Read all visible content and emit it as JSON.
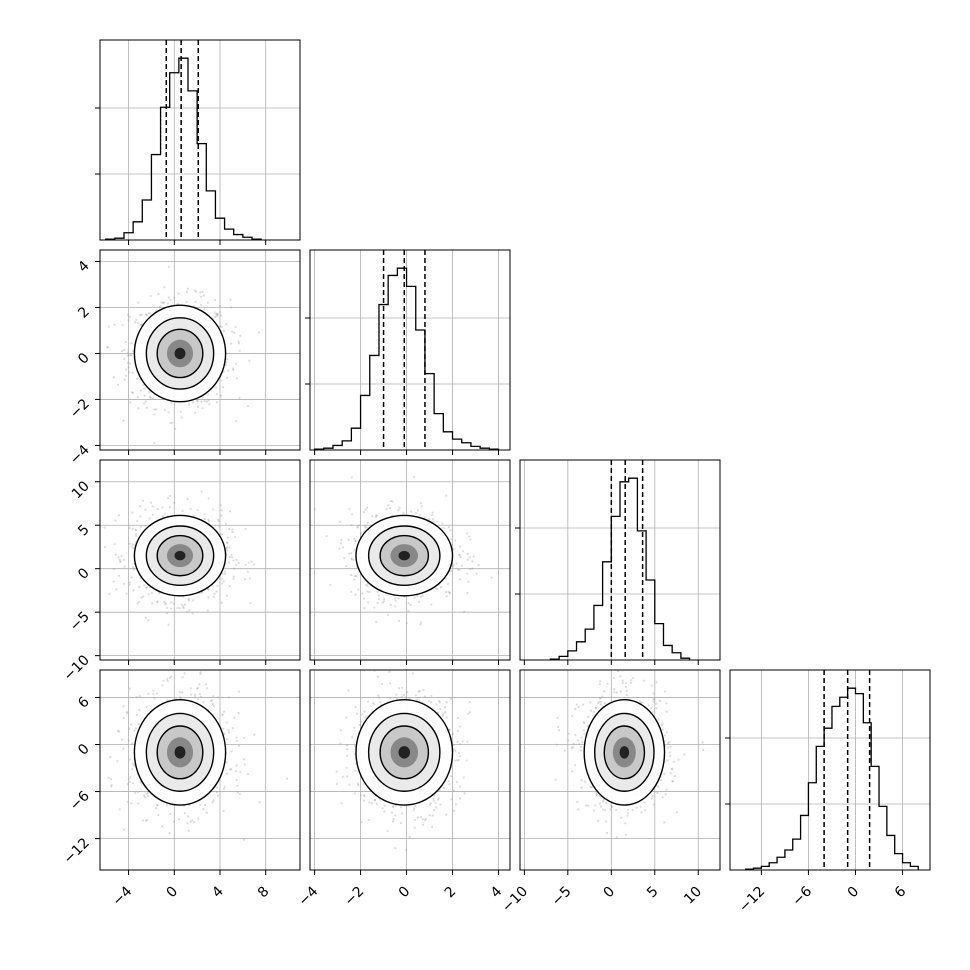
{
  "chart_data": {
    "type": "corner",
    "title": "",
    "grid": true,
    "colors": {
      "ink": "#000000",
      "grid": "#b0b0b0",
      "scatter": "#9a9a9a"
    },
    "params": [
      {
        "range": [
          -6.5,
          11.0
        ],
        "ticks": [
          -4,
          0,
          4,
          8
        ],
        "tick_labels": [
          "−4",
          "0",
          "4",
          "8"
        ],
        "quantiles": [
          -0.7,
          0.6,
          2.1
        ],
        "hist": {
          "edges": [
            -6.0,
            -5.2,
            -4.4,
            -3.6,
            -2.8,
            -2.0,
            -1.2,
            -0.4,
            0.4,
            1.2,
            2.0,
            2.8,
            3.6,
            4.4,
            5.2,
            6.0,
            6.8,
            7.6
          ],
          "counts": [
            0.005,
            0.01,
            0.04,
            0.1,
            0.22,
            0.47,
            0.73,
            0.92,
            1.0,
            0.82,
            0.53,
            0.27,
            0.12,
            0.06,
            0.03,
            0.015,
            0.005
          ]
        }
      },
      {
        "range": [
          -4.2,
          4.5
        ],
        "ticks": [
          -4,
          -2,
          0,
          2,
          4
        ],
        "tick_labels": [
          "−4",
          "−2",
          "0",
          "2",
          "4"
        ],
        "quantiles": [
          -1.0,
          -0.1,
          0.8
        ],
        "hist": {
          "edges": [
            -4.0,
            -3.6,
            -3.2,
            -2.8,
            -2.4,
            -2.0,
            -1.6,
            -1.2,
            -0.8,
            -0.4,
            0.0,
            0.4,
            0.8,
            1.2,
            1.6,
            2.0,
            2.4,
            2.8,
            3.2,
            3.6,
            4.0
          ],
          "counts": [
            0.005,
            0.01,
            0.025,
            0.05,
            0.12,
            0.3,
            0.52,
            0.8,
            0.96,
            1.0,
            0.9,
            0.66,
            0.42,
            0.2,
            0.1,
            0.06,
            0.04,
            0.02,
            0.01,
            0.005
          ]
        }
      },
      {
        "range": [
          -10.5,
          12.5
        ],
        "ticks": [
          -10,
          -5,
          0,
          5,
          10
        ],
        "tick_labels": [
          "−10",
          "−5",
          "0",
          "5",
          "10"
        ],
        "quantiles": [
          0.0,
          1.6,
          3.6
        ],
        "hist": {
          "edges": [
            -7.0,
            -6.0,
            -5.0,
            -4.0,
            -3.0,
            -2.0,
            -1.0,
            0.0,
            1.0,
            2.0,
            3.0,
            4.0,
            5.0,
            6.0,
            7.0,
            8.0,
            9.0
          ],
          "counts": [
            0.005,
            0.02,
            0.05,
            0.1,
            0.17,
            0.3,
            0.54,
            0.79,
            0.98,
            1.0,
            0.71,
            0.44,
            0.2,
            0.08,
            0.04,
            0.01
          ]
        }
      },
      {
        "range": [
          -16.0,
          9.5
        ],
        "ticks": [
          -12,
          -6,
          0,
          6
        ],
        "tick_labels": [
          "−12",
          "−6",
          "0",
          "6"
        ],
        "quantiles": [
          -4.0,
          -1.0,
          1.8
        ],
        "hist": {
          "edges": [
            -14.0,
            -13.0,
            -12.0,
            -11.0,
            -10.0,
            -9.0,
            -8.0,
            -7.0,
            -6.0,
            -5.0,
            -4.0,
            -3.0,
            -2.0,
            -1.0,
            0.0,
            1.0,
            2.0,
            3.0,
            4.0,
            5.0,
            6.0,
            7.0,
            8.0
          ],
          "counts": [
            0.005,
            0.01,
            0.02,
            0.04,
            0.07,
            0.11,
            0.17,
            0.3,
            0.48,
            0.68,
            0.78,
            0.9,
            0.95,
            1.0,
            0.97,
            0.81,
            0.57,
            0.35,
            0.19,
            0.09,
            0.04,
            0.02
          ]
        }
      }
    ],
    "pairs": [
      {
        "x": 0,
        "y": 1,
        "center": [
          0.5,
          0.0
        ],
        "spread": [
          1.9,
          1.0
        ]
      },
      {
        "x": 0,
        "y": 2,
        "center": [
          0.5,
          1.5
        ],
        "spread": [
          1.9,
          2.2
        ]
      },
      {
        "x": 1,
        "y": 2,
        "center": [
          -0.1,
          1.5
        ],
        "spread": [
          1.0,
          2.2
        ]
      },
      {
        "x": 0,
        "y": 3,
        "center": [
          0.5,
          -1.0
        ],
        "spread": [
          1.9,
          3.2
        ]
      },
      {
        "x": 1,
        "y": 3,
        "center": [
          -0.1,
          -1.0
        ],
        "spread": [
          1.0,
          3.2
        ]
      },
      {
        "x": 2,
        "y": 3,
        "center": [
          1.5,
          -1.0
        ],
        "spread": [
          2.2,
          3.2
        ]
      }
    ]
  }
}
